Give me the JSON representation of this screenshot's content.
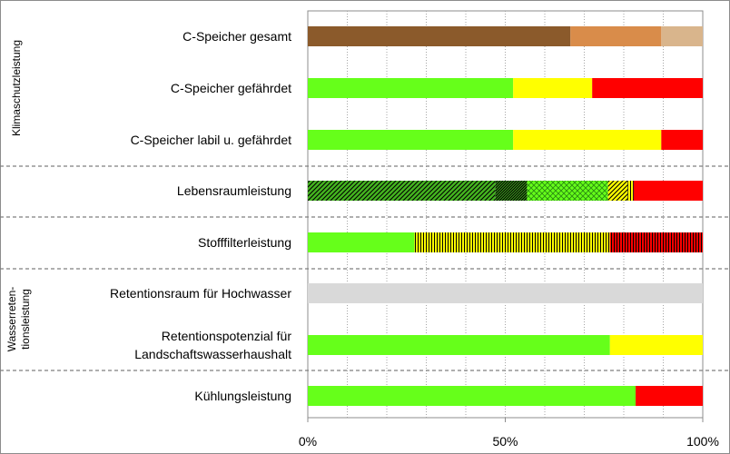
{
  "chart_data": {
    "type": "bar",
    "orientation": "horizontal",
    "stacked": true,
    "categories": [
      "C-Speicher gesamt",
      "C-Speicher gefährdet",
      "C-Speicher labil u. gefährdet",
      "Lebensraumleistung",
      "Stofffilterleistung",
      "Retentionsraum für Hochwasser",
      "Retentionspotenzial für Landschaftswasserhaushalt",
      "Kühlungsleistung"
    ],
    "category_lines": [
      [
        "C-Speicher gesamt"
      ],
      [
        "C-Speicher gefährdet"
      ],
      [
        "C-Speicher labil u. gefährdet"
      ],
      [
        "Lebensraumleistung"
      ],
      [
        "Stofffilterleistung"
      ],
      [
        "Retentionsraum für Hochwasser"
      ],
      [
        "Retentionspotenzial für",
        "Landschaftswasserhaushalt"
      ],
      [
        "Kühlungsleistung"
      ]
    ],
    "segments": [
      [
        {
          "value": 66.5,
          "color": "#8b5a2b"
        },
        {
          "value": 23,
          "color": "#d98c4a"
        },
        {
          "value": 10.5,
          "color": "#d9b58c"
        }
      ],
      [
        {
          "value": 52,
          "color": "#66ff1a"
        },
        {
          "value": 20,
          "color": "#ffff00"
        },
        {
          "value": 28,
          "color": "#ff0000"
        }
      ],
      [
        {
          "value": 52,
          "color": "#66ff1a"
        },
        {
          "value": 37.5,
          "color": "#ffff00"
        },
        {
          "value": 10.5,
          "color": "#ff0000"
        }
      ],
      [
        {
          "value": 47.5,
          "color": "#44b51f",
          "pattern": "diag"
        },
        {
          "value": 8,
          "color": "#44b51f",
          "pattern": "diag-dense"
        },
        {
          "value": 20.5,
          "color": "#66ff1a",
          "pattern": "cross"
        },
        {
          "value": 5,
          "color": "#ffff00",
          "pattern": "diag"
        },
        {
          "value": 1.5,
          "color": "#ffff00",
          "pattern": "vert"
        },
        {
          "value": 17.5,
          "color": "#ff0000"
        }
      ],
      [
        {
          "value": 27,
          "color": "#66ff1a"
        },
        {
          "value": 49.5,
          "color": "#ffff00",
          "pattern": "vert"
        },
        {
          "value": 23.5,
          "color": "#ff0000",
          "pattern": "vert"
        }
      ],
      [
        {
          "value": 100,
          "color": "#d9d9d9"
        }
      ],
      [
        {
          "value": 76.5,
          "color": "#66ff1a"
        },
        {
          "value": 23.5,
          "color": "#ffff00"
        }
      ],
      [
        {
          "value": 83,
          "color": "#66ff1a"
        },
        {
          "value": 17,
          "color": "#ff0000"
        }
      ]
    ],
    "groups": [
      {
        "lines": [
          "Klimaschutzleistung"
        ],
        "from": 0,
        "to": 2
      },
      {
        "lines": [
          "Wasserreten-",
          "tionsleistung"
        ],
        "from": 5,
        "to": 6
      }
    ],
    "group_separators_after": [
      2,
      3,
      4,
      6
    ],
    "xlim": [
      0,
      100
    ],
    "x_ticks": [
      0,
      50,
      100
    ],
    "x_tick_labels": [
      "0%",
      "50%",
      "100%"
    ],
    "grid": "vertical"
  }
}
